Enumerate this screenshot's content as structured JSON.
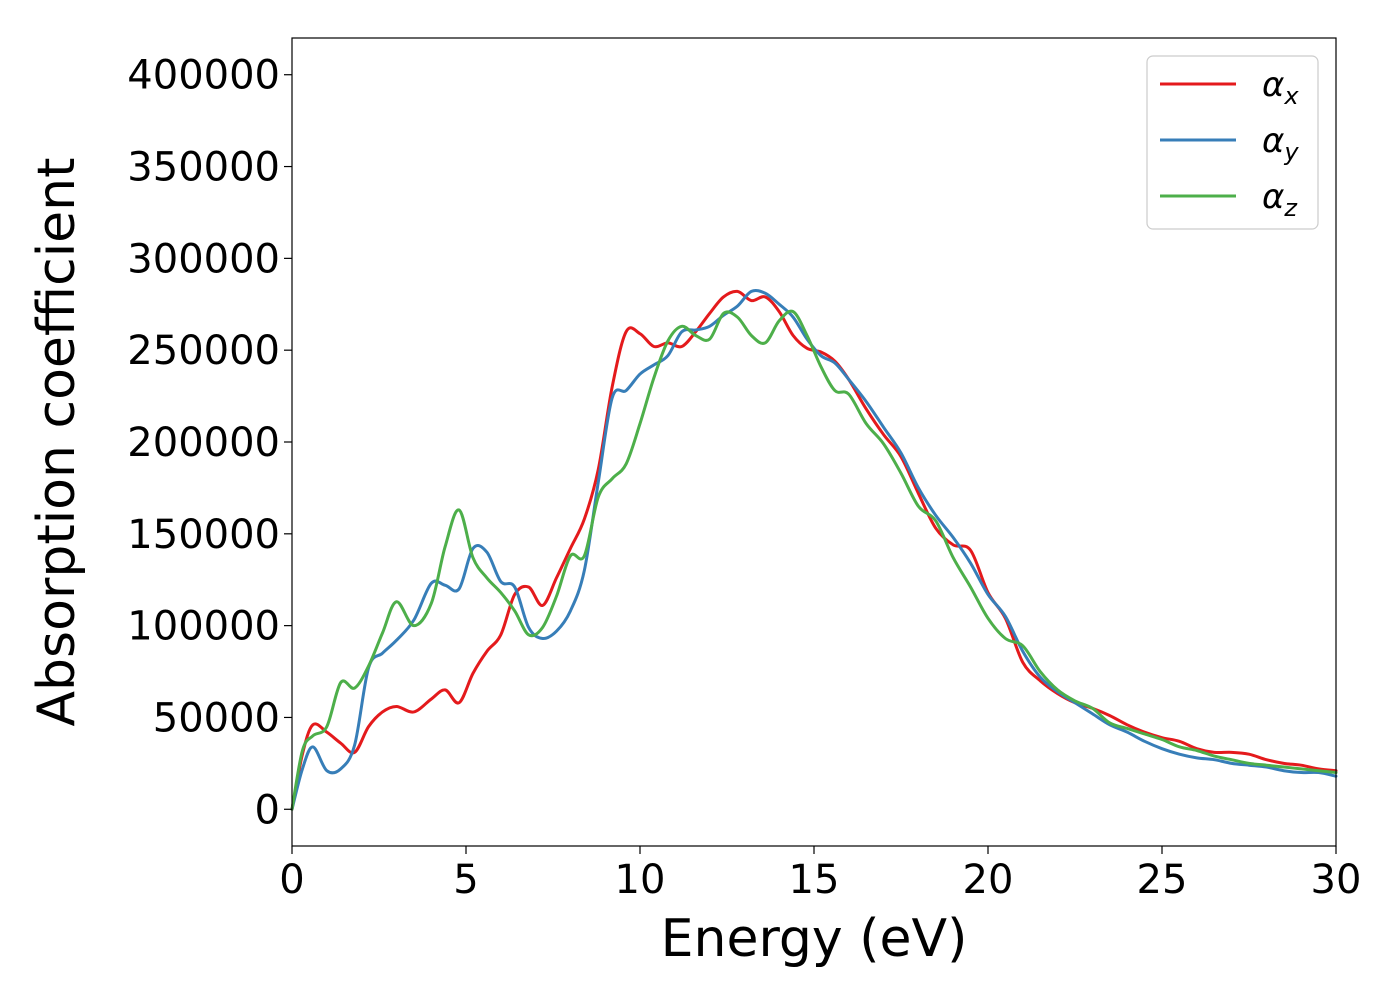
{
  "chart_data": {
    "type": "line",
    "xlabel": "Energy (eV)",
    "ylabel": "Absorption coefficient",
    "xlim": [
      0,
      30
    ],
    "ylim": [
      -20000,
      420000
    ],
    "xticks": [
      0,
      5,
      10,
      15,
      20,
      25,
      30
    ],
    "yticks": [
      0,
      50000,
      100000,
      150000,
      200000,
      250000,
      300000,
      350000,
      400000
    ],
    "grid": false,
    "legend_position": "top-right",
    "series": [
      {
        "name": "α_x",
        "symbol": "α",
        "subscript": "x",
        "color": "#e41a1c",
        "x": [
          0,
          0.3,
          0.6,
          1.0,
          1.4,
          1.8,
          2.2,
          2.6,
          3.0,
          3.5,
          4.0,
          4.4,
          4.8,
          5.2,
          5.6,
          6.0,
          6.4,
          6.8,
          7.2,
          7.6,
          8.0,
          8.4,
          8.8,
          9.2,
          9.6,
          10.0,
          10.4,
          10.8,
          11.2,
          11.6,
          12.0,
          12.4,
          12.8,
          13.2,
          13.6,
          14.0,
          14.4,
          14.8,
          15.2,
          15.6,
          16.0,
          16.5,
          17.0,
          17.5,
          18.0,
          18.5,
          19.0,
          19.5,
          20.0,
          20.5,
          21.0,
          21.5,
          22.0,
          22.5,
          23.0,
          23.5,
          24.0,
          24.5,
          25.0,
          25.5,
          26.0,
          26.5,
          27.0,
          27.5,
          28.0,
          28.5,
          29.0,
          29.5,
          30.0
        ],
        "y": [
          0,
          30000,
          46000,
          42000,
          36000,
          31000,
          45000,
          53000,
          56000,
          53000,
          60000,
          65000,
          58000,
          74000,
          86000,
          95000,
          117000,
          121000,
          111000,
          126000,
          142000,
          158000,
          185000,
          230000,
          260000,
          259000,
          252000,
          254000,
          252000,
          260000,
          270000,
          279000,
          282000,
          277000,
          279000,
          271000,
          258000,
          251000,
          249000,
          244000,
          234000,
          218000,
          204000,
          192000,
          172000,
          153000,
          144000,
          141000,
          118000,
          104000,
          80000,
          70000,
          63000,
          58000,
          55000,
          51000,
          46000,
          42000,
          39000,
          37000,
          33000,
          31000,
          31000,
          30000,
          27000,
          25000,
          24000,
          22000,
          21000
        ]
      },
      {
        "name": "α_y",
        "symbol": "α",
        "subscript": "y",
        "color": "#377eb8",
        "x": [
          0,
          0.3,
          0.6,
          1.0,
          1.4,
          1.8,
          2.2,
          2.6,
          3.0,
          3.5,
          4.0,
          4.4,
          4.8,
          5.2,
          5.6,
          6.0,
          6.4,
          6.8,
          7.2,
          7.6,
          8.0,
          8.4,
          8.8,
          9.2,
          9.6,
          10.0,
          10.4,
          10.8,
          11.2,
          11.6,
          12.0,
          12.4,
          12.8,
          13.2,
          13.6,
          14.0,
          14.4,
          14.8,
          15.2,
          15.6,
          16.0,
          16.5,
          17.0,
          17.5,
          18.0,
          18.5,
          19.0,
          19.5,
          20.0,
          20.5,
          21.0,
          21.5,
          22.0,
          22.5,
          23.0,
          23.5,
          24.0,
          24.5,
          25.0,
          25.5,
          26.0,
          26.5,
          27.0,
          27.5,
          28.0,
          28.5,
          29.0,
          29.5,
          30.0
        ],
        "y": [
          0,
          22000,
          34000,
          21000,
          22000,
          35000,
          77000,
          85000,
          92000,
          103000,
          123000,
          122000,
          120000,
          142000,
          140000,
          124000,
          121000,
          99000,
          93000,
          97000,
          108000,
          130000,
          178000,
          224000,
          228000,
          237000,
          242000,
          247000,
          260000,
          261000,
          263000,
          269000,
          274000,
          282000,
          281000,
          275000,
          268000,
          256000,
          247000,
          243000,
          234000,
          222000,
          208000,
          194000,
          175000,
          160000,
          148000,
          134000,
          117000,
          105000,
          86000,
          72000,
          64000,
          58000,
          52000,
          46000,
          42000,
          37000,
          33000,
          30000,
          28000,
          27000,
          25000,
          24000,
          23000,
          21000,
          20000,
          20000,
          18000
        ]
      },
      {
        "name": "α_z",
        "symbol": "α",
        "subscript": "z",
        "color": "#4daf4a",
        "x": [
          0,
          0.3,
          0.6,
          1.0,
          1.4,
          1.8,
          2.2,
          2.6,
          3.0,
          3.5,
          4.0,
          4.4,
          4.8,
          5.2,
          5.6,
          6.0,
          6.4,
          6.8,
          7.2,
          7.6,
          8.0,
          8.4,
          8.8,
          9.2,
          9.6,
          10.0,
          10.4,
          10.8,
          11.2,
          11.6,
          12.0,
          12.4,
          12.8,
          13.2,
          13.6,
          14.0,
          14.4,
          14.8,
          15.2,
          15.6,
          16.0,
          16.5,
          17.0,
          17.5,
          18.0,
          18.5,
          19.0,
          19.5,
          20.0,
          20.5,
          21.0,
          21.5,
          22.0,
          22.5,
          23.0,
          23.5,
          24.0,
          24.5,
          25.0,
          25.5,
          26.0,
          26.5,
          27.0,
          27.5,
          28.0,
          28.5,
          29.0,
          29.5,
          30.0
        ],
        "y": [
          0,
          32000,
          40000,
          45000,
          69000,
          66000,
          78000,
          96000,
          113000,
          100000,
          112000,
          143000,
          163000,
          137000,
          126000,
          118000,
          108000,
          95000,
          99000,
          116000,
          138000,
          138000,
          170000,
          180000,
          188000,
          210000,
          235000,
          255000,
          263000,
          258000,
          256000,
          270000,
          268000,
          258000,
          254000,
          266000,
          271000,
          258000,
          241000,
          228000,
          226000,
          210000,
          199000,
          183000,
          165000,
          157000,
          137000,
          121000,
          104000,
          93000,
          89000,
          75000,
          65000,
          59000,
          55000,
          47000,
          44000,
          41000,
          38000,
          34000,
          32000,
          29000,
          27000,
          25000,
          24000,
          23000,
          22000,
          21000,
          20000
        ]
      }
    ]
  }
}
